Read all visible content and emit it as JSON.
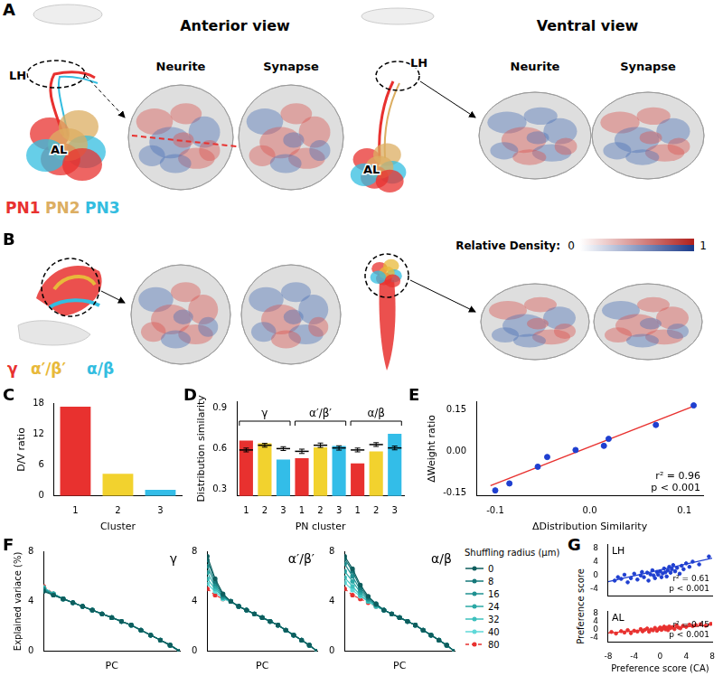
{
  "figure": {
    "A": {
      "letter": "A",
      "views": [
        "Anterior view",
        "Ventral view"
      ],
      "subpanels": [
        "Neurite",
        "Synapse"
      ],
      "regions": [
        "LH",
        "AL"
      ],
      "clusters": [
        {
          "name": "PN1",
          "color": "#e8312f"
        },
        {
          "name": "PN2",
          "color": "#dcae62"
        },
        {
          "name": "PN3",
          "color": "#33bde0"
        }
      ]
    },
    "B": {
      "letter": "B",
      "clusters": [
        {
          "name": "γ",
          "color": "#e8312f"
        },
        {
          "name": "α′/β′",
          "color": "#e8b93a"
        },
        {
          "name": "α/β",
          "color": "#33bde0"
        }
      ]
    },
    "colorbar": {
      "label": "Relative Density:",
      "range": [
        0,
        1
      ],
      "ticks": [
        0,
        1
      ]
    }
  },
  "chart_data": [
    {
      "letter": "C",
      "type": "bar",
      "categories": [
        "1",
        "2",
        "3"
      ],
      "values": [
        17.3,
        4.3,
        1.2
      ],
      "colors": [
        "#e8312f",
        "#f2d22e",
        "#33bde8"
      ],
      "xlabel": "Cluster",
      "ylabel": "D/V ratio",
      "ylim": [
        0,
        18
      ],
      "yticks": [
        0,
        6,
        12,
        18
      ],
      "grid": false
    },
    {
      "letter": "D",
      "type": "bar",
      "groups": [
        "γ",
        "α′/β′",
        "α/β"
      ],
      "categories": [
        "1",
        "2",
        "3",
        "1",
        "2",
        "3",
        "1",
        "2",
        "3"
      ],
      "values": [
        0.66,
        0.64,
        0.52,
        0.53,
        0.61,
        0.62,
        0.49,
        0.58,
        0.71
      ],
      "colors": [
        "#e8312f",
        "#f2d22e",
        "#33bde8",
        "#e8312f",
        "#f2d22e",
        "#33bde8",
        "#e8312f",
        "#f2d22e",
        "#33bde8"
      ],
      "shuffled_mean": [
        0.59,
        0.625,
        0.6,
        0.58,
        0.625,
        0.605,
        0.59,
        0.63,
        0.605
      ],
      "shuffled_error": [
        0.004,
        0.004,
        0.004,
        0.006,
        0.006,
        0.006,
        0.004,
        0.004,
        0.004
      ],
      "xlabel": "PN cluster",
      "ylabel": "Distribution similarity",
      "ylim": [
        0.25,
        0.95
      ],
      "yticks": [
        0.3,
        0.6,
        0.9
      ],
      "grid": false
    },
    {
      "letter": "E",
      "type": "scatter",
      "x": [
        -0.1,
        -0.085,
        -0.055,
        -0.045,
        -0.015,
        0.015,
        0.02,
        0.07,
        0.11
      ],
      "y": [
        -0.14,
        -0.115,
        -0.055,
        -0.02,
        0.005,
        0.02,
        0.045,
        0.095,
        0.165
      ],
      "color": "#1f3fd0",
      "fit_line": {
        "x": [
          -0.105,
          0.112
        ],
        "y": [
          -0.123,
          0.165
        ],
        "color": "#e8312f"
      },
      "annotations": [
        "r² = 0.96",
        "p < 0.001"
      ],
      "xlabel": "ΔDistribution Similarity",
      "ylabel": "ΔWeight ratio",
      "xlim": [
        -0.12,
        0.12
      ],
      "xticks": [
        -0.1,
        {
          "value": 0,
          "label": "0.0"
        },
        0.1
      ],
      "ylim": [
        -0.16,
        0.18
      ],
      "yticks": [
        -0.15,
        {
          "value": 0,
          "label": "0.00"
        },
        0.15
      ],
      "grid": false
    },
    {
      "letter": "F",
      "type": "line",
      "xlabel": "PC",
      "ylabel": "Explained variace (%)",
      "x": [
        1,
        2,
        3,
        4,
        5,
        6,
        7,
        8,
        9,
        10,
        11,
        12,
        13,
        14,
        15
      ],
      "xlim": [
        1,
        15
      ],
      "ylim": [
        0,
        8
      ],
      "yticks": [
        0,
        4,
        8
      ],
      "tick_labels": "y",
      "marker": "circle",
      "legend": "right",
      "legend_title": "Shuffling radius (μm)",
      "panels": [
        {
          "title": "γ",
          "series": [
            {
              "name": "0",
              "color": "#0f5e5e",
              "line_style": "solid",
              "values": [
                4.8,
                4.5,
                4.2,
                3.9,
                3.6,
                3.3,
                3.0,
                2.7,
                2.4,
                2.1,
                1.7,
                1.3,
                0.9,
                0.5,
                0.0
              ]
            },
            {
              "name": "8",
              "color": "#16787a",
              "line_style": "solid",
              "values": [
                4.9,
                4.5,
                4.2,
                3.9,
                3.6,
                3.3,
                3.0,
                2.7,
                2.4,
                2.1,
                1.7,
                1.3,
                0.9,
                0.5,
                0.0
              ]
            },
            {
              "name": "16",
              "color": "#1f9090",
              "line_style": "solid",
              "values": [
                5.0,
                4.5,
                4.2,
                3.9,
                3.6,
                3.3,
                3.0,
                2.7,
                2.4,
                2.1,
                1.7,
                1.3,
                0.9,
                0.5,
                0.0
              ]
            },
            {
              "name": "24",
              "color": "#2aa8a5",
              "line_style": "solid",
              "values": [
                5.0,
                4.6,
                4.2,
                3.9,
                3.6,
                3.3,
                3.0,
                2.7,
                2.4,
                2.1,
                1.7,
                1.3,
                0.9,
                0.5,
                0.0
              ]
            },
            {
              "name": "32",
              "color": "#3cc0bd",
              "line_style": "solid",
              "values": [
                5.1,
                4.6,
                4.2,
                3.9,
                3.6,
                3.3,
                3.0,
                2.7,
                2.4,
                2.1,
                1.7,
                1.3,
                0.9,
                0.5,
                0.0
              ]
            },
            {
              "name": "40",
              "color": "#5fd8d8",
              "line_style": "solid",
              "values": [
                5.1,
                4.6,
                4.2,
                3.9,
                3.6,
                3.3,
                3.0,
                2.7,
                2.4,
                2.1,
                1.7,
                1.3,
                0.9,
                0.5,
                0.0
              ]
            },
            {
              "name": "80",
              "color": "#e8312f",
              "line_style": "dashed",
              "values": [
                5.2,
                4.6,
                4.2,
                3.9,
                3.6,
                3.3,
                3.0,
                2.7,
                2.4,
                2.1,
                1.7,
                1.3,
                0.9,
                0.5,
                0.0
              ]
            }
          ]
        },
        {
          "title": "α′/β′",
          "series": [
            {
              "name": "0",
              "color": "#0f5e5e",
              "line_style": "solid",
              "values": [
                7.6,
                5.8,
                4.6,
                4.0,
                3.6,
                3.3,
                3.0,
                2.7,
                2.4,
                2.1,
                1.7,
                1.3,
                0.9,
                0.5,
                0.0
              ]
            },
            {
              "name": "8",
              "color": "#16787a",
              "line_style": "solid",
              "values": [
                7.3,
                5.6,
                4.5,
                4.0,
                3.6,
                3.3,
                3.0,
                2.7,
                2.4,
                2.1,
                1.7,
                1.3,
                0.9,
                0.5,
                0.0
              ]
            },
            {
              "name": "16",
              "color": "#1f9090",
              "line_style": "solid",
              "values": [
                6.8,
                5.4,
                4.4,
                4.0,
                3.6,
                3.3,
                3.0,
                2.7,
                2.4,
                2.1,
                1.7,
                1.3,
                0.9,
                0.5,
                0.0
              ]
            },
            {
              "name": "24",
              "color": "#2aa8a5",
              "line_style": "solid",
              "values": [
                6.3,
                5.2,
                4.3,
                4.0,
                3.6,
                3.3,
                3.0,
                2.7,
                2.4,
                2.1,
                1.7,
                1.3,
                0.9,
                0.5,
                0.0
              ]
            },
            {
              "name": "32",
              "color": "#3cc0bd",
              "line_style": "solid",
              "values": [
                5.8,
                5.0,
                4.3,
                4.0,
                3.6,
                3.3,
                3.0,
                2.7,
                2.4,
                2.1,
                1.7,
                1.3,
                0.9,
                0.5,
                0.0
              ]
            },
            {
              "name": "40",
              "color": "#5fd8d8",
              "line_style": "solid",
              "values": [
                5.4,
                4.8,
                4.2,
                4.0,
                3.6,
                3.3,
                3.0,
                2.7,
                2.4,
                2.1,
                1.7,
                1.3,
                0.9,
                0.5,
                0.0
              ]
            },
            {
              "name": "80",
              "color": "#e8312f",
              "line_style": "dashed",
              "values": [
                5.0,
                4.5,
                4.2,
                4.0,
                3.6,
                3.3,
                3.0,
                2.7,
                2.4,
                2.1,
                1.7,
                1.3,
                0.9,
                0.5,
                0.0
              ]
            }
          ]
        },
        {
          "title": "α/β",
          "series": [
            {
              "name": "0",
              "color": "#0f5e5e",
              "line_style": "solid",
              "values": [
                7.6,
                6.6,
                5.3,
                4.4,
                3.8,
                3.3,
                3.0,
                2.7,
                2.4,
                2.1,
                1.7,
                1.3,
                0.9,
                0.5,
                0.0
              ]
            },
            {
              "name": "8",
              "color": "#16787a",
              "line_style": "solid",
              "values": [
                7.4,
                6.4,
                5.1,
                4.3,
                3.8,
                3.3,
                3.0,
                2.7,
                2.4,
                2.1,
                1.7,
                1.3,
                0.9,
                0.5,
                0.0
              ]
            },
            {
              "name": "16",
              "color": "#1f9090",
              "line_style": "solid",
              "values": [
                7.0,
                6.0,
                4.9,
                4.2,
                3.7,
                3.3,
                3.0,
                2.7,
                2.4,
                2.1,
                1.7,
                1.3,
                0.9,
                0.5,
                0.0
              ]
            },
            {
              "name": "24",
              "color": "#2aa8a5",
              "line_style": "solid",
              "values": [
                6.4,
                5.6,
                4.7,
                4.1,
                3.7,
                3.3,
                3.0,
                2.7,
                2.4,
                2.1,
                1.7,
                1.3,
                0.9,
                0.5,
                0.0
              ]
            },
            {
              "name": "32",
              "color": "#3cc0bd",
              "line_style": "solid",
              "values": [
                5.9,
                5.2,
                4.5,
                4.0,
                3.6,
                3.3,
                3.0,
                2.7,
                2.4,
                2.1,
                1.7,
                1.3,
                0.9,
                0.5,
                0.0
              ]
            },
            {
              "name": "40",
              "color": "#5fd8d8",
              "line_style": "solid",
              "values": [
                5.5,
                4.9,
                4.4,
                4.0,
                3.6,
                3.3,
                3.0,
                2.7,
                2.4,
                2.1,
                1.7,
                1.3,
                0.9,
                0.5,
                0.0
              ]
            },
            {
              "name": "80",
              "color": "#e8312f",
              "line_style": "dashed",
              "values": [
                5.0,
                4.5,
                4.2,
                3.9,
                3.6,
                3.3,
                3.0,
                2.7,
                2.4,
                2.1,
                1.7,
                1.3,
                0.9,
                0.5,
                0.0
              ]
            }
          ]
        }
      ]
    },
    {
      "letter": "G",
      "type": "scatter",
      "xlabel": "Preference score (CA)",
      "ylabel": "Preference score",
      "xlim": [
        -8,
        8
      ],
      "xticks": [
        -8,
        -4,
        0,
        4,
        8
      ],
      "ylim": [
        -6,
        9
      ],
      "yticks": [
        -4,
        0,
        4,
        8
      ],
      "grid": false,
      "panels": [
        {
          "title": "LH",
          "color": "#1f3fd0",
          "tick_labels": "y",
          "x": [
            -7,
            -6.5,
            -6,
            -5.5,
            -5,
            -4.5,
            -4,
            -3.5,
            -3,
            -2.8,
            -2.5,
            -2,
            -1.8,
            -1.5,
            -1.2,
            -1,
            -0.8,
            -0.5,
            -0.3,
            0,
            0.2,
            0.4,
            0.6,
            0.8,
            1,
            1.2,
            1.4,
            1.6,
            1.8,
            2,
            2.3,
            2.6,
            3,
            3.3,
            3.6,
            4,
            4.5,
            5,
            6,
            7.5
          ],
          "y": [
            -1.5,
            -0.5,
            -1,
            0.2,
            -2,
            -0.8,
            0.5,
            -1.2,
            0,
            1,
            -0.5,
            0.8,
            -1.5,
            0.3,
            1.5,
            0,
            -0.8,
            1,
            0.2,
            1.2,
            -0.5,
            0.6,
            2,
            0.9,
            -0.3,
            1.5,
            2.5,
            0.8,
            1.8,
            3,
            1.2,
            2.2,
            0.5,
            2.8,
            1.8,
            3.5,
            2.5,
            4,
            3.2,
            5.5
          ],
          "fit_line": {
            "x": [
              -8,
              8
            ],
            "y": [
              -1.8,
              5
            ]
          },
          "annotations": [
            "r² = 0.61",
            "p < 0.001"
          ]
        },
        {
          "title": "AL",
          "color": "#e8312f",
          "x": [
            -7.5,
            -6.8,
            -6,
            -5.5,
            -5,
            -4.5,
            -4,
            -3.5,
            -3,
            -2.7,
            -2.4,
            -2,
            -1.7,
            -1.4,
            -1.1,
            -0.8,
            -0.5,
            -0.2,
            0,
            0.2,
            0.4,
            0.6,
            0.8,
            1,
            1.2,
            1.4,
            1.6,
            1.9,
            2.2,
            2.5,
            2.8,
            3.1,
            3.5,
            4,
            4.5,
            5,
            5.5,
            6.2,
            7,
            7.8
          ],
          "y": [
            -1.2,
            -2,
            -0.8,
            -1.5,
            -0.3,
            -1.8,
            -0.6,
            -1,
            0.2,
            -0.9,
            -0.2,
            0.5,
            -1.1,
            0,
            -0.4,
            0.8,
            -0.6,
            0.3,
            1,
            -0.2,
            0.6,
            1.4,
            0.1,
            0.9,
            -0.3,
            1.5,
            0.7,
            1.2,
            0.2,
            2,
            1,
            0.6,
            1.8,
            1.3,
            2.4,
            1.7,
            2.2,
            2.6,
            1.9,
            2.8
          ],
          "fit_line": {
            "x": [
              -8,
              8
            ],
            "y": [
              -1.7,
              2.3
            ]
          },
          "annotations": [
            "r² = 0.45",
            "p < 0.001"
          ]
        }
      ]
    }
  ]
}
